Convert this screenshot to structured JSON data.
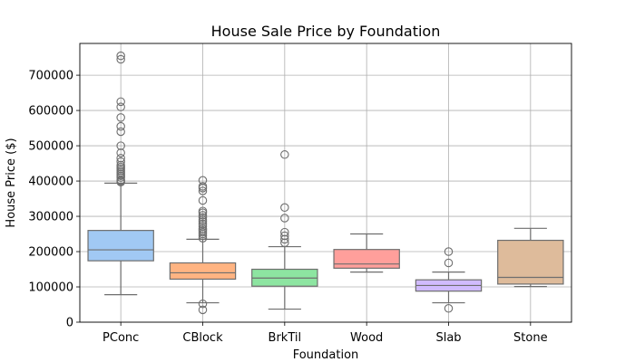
{
  "chart_data": {
    "type": "box",
    "title": "House Sale Price by Foundation",
    "xlabel": "Foundation",
    "ylabel": "House Price ($)",
    "ylim": [
      0,
      790000
    ],
    "yticks": [
      0,
      100000,
      200000,
      300000,
      400000,
      500000,
      600000,
      700000
    ],
    "ytick_labels": [
      "0",
      "100000",
      "200000",
      "300000",
      "400000",
      "500000",
      "600000",
      "700000"
    ],
    "grid": true,
    "categories": [
      "PConc",
      "CBlock",
      "BrkTil",
      "Wood",
      "Slab",
      "Stone"
    ],
    "colors": [
      "#a1c9f4",
      "#ffb482",
      "#8de5a1",
      "#ff9f9b",
      "#d0bbff",
      "#debb9b"
    ],
    "boxes": [
      {
        "category": "PConc",
        "whisker_low": 78000,
        "q1": 174000,
        "median": 205000,
        "q3": 260000,
        "whisker_high": 394000,
        "outliers": [
          397000,
          400000,
          403000,
          410000,
          415000,
          420000,
          425000,
          430000,
          435000,
          440000,
          445000,
          455000,
          465000,
          480000,
          500000,
          540000,
          555000,
          580000,
          610000,
          625000,
          745000,
          755000
        ]
      },
      {
        "category": "CBlock",
        "whisker_low": 55000,
        "q1": 122000,
        "median": 140000,
        "q3": 168000,
        "whisker_high": 235000,
        "outliers": [
          35000,
          52000,
          238000,
          245000,
          250000,
          255000,
          260000,
          265000,
          272000,
          278000,
          285000,
          290000,
          297000,
          303000,
          310000,
          315000,
          345000,
          372000,
          380000,
          385000,
          402000
        ]
      },
      {
        "category": "BrkTil",
        "whisker_low": 37000,
        "q1": 102000,
        "median": 125000,
        "q3": 150000,
        "whisker_high": 214000,
        "outliers": [
          225000,
          235000,
          245000,
          255000,
          295000,
          325000,
          475000
        ]
      },
      {
        "category": "Wood",
        "whisker_low": 142000,
        "q1": 153000,
        "median": 165000,
        "q3": 206000,
        "whisker_high": 250000,
        "outliers": []
      },
      {
        "category": "Slab",
        "whisker_low": 55000,
        "q1": 88000,
        "median": 104000,
        "q3": 120000,
        "whisker_high": 142000,
        "outliers": [
          39000,
          168000,
          200000
        ]
      },
      {
        "category": "Stone",
        "whisker_low": 101000,
        "q1": 108000,
        "median": 127000,
        "q3": 232000,
        "whisker_high": 266000,
        "outliers": []
      }
    ]
  }
}
